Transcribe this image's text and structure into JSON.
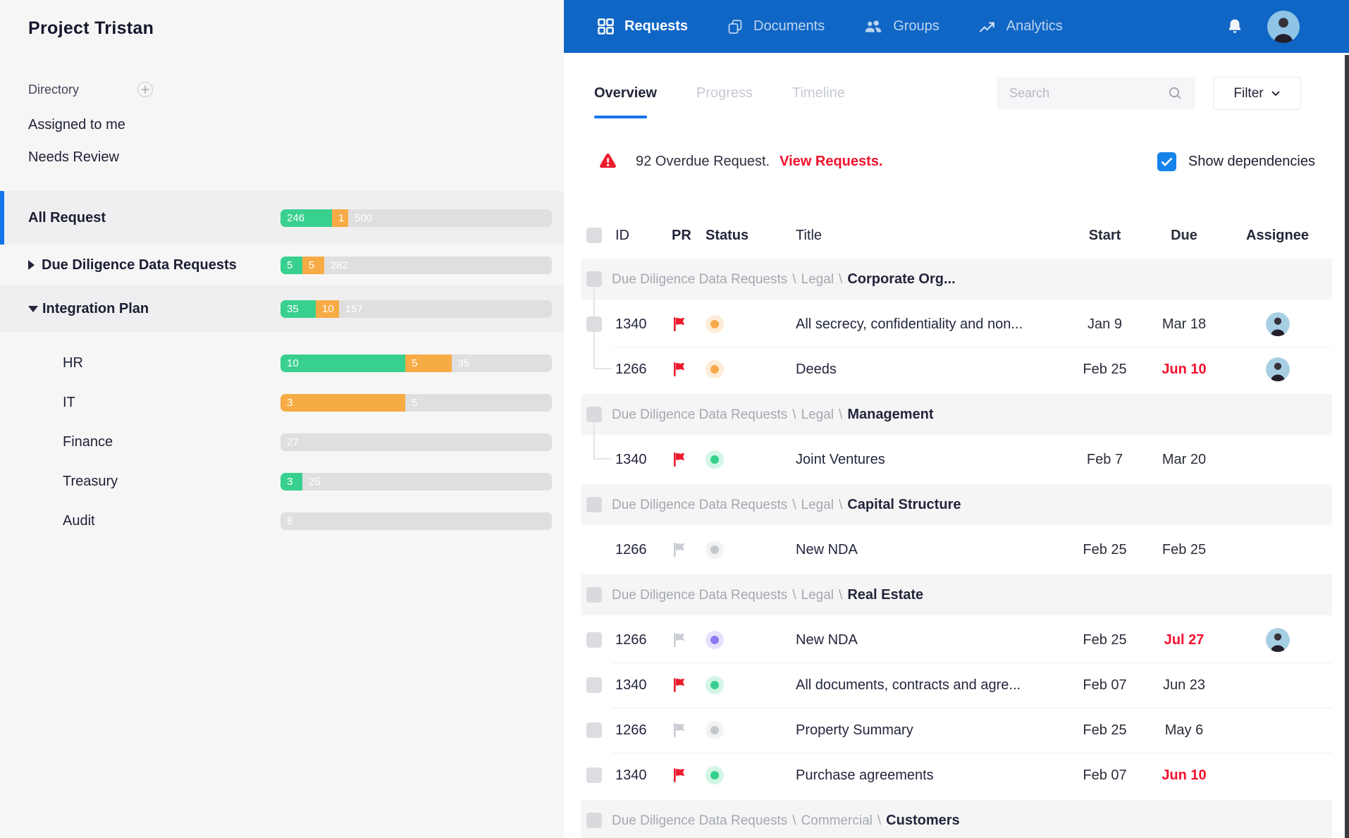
{
  "colors": {
    "header_blue": "#0F66C5",
    "accent_blue": "#1474EC",
    "checkbox_blue": "#1583EA",
    "alert_red": "#EC1C2E",
    "overdue_red": "#F2112D",
    "bar_green": "#38D08E",
    "bar_orange": "#F7AB44",
    "bar_gray": "#DFDFE1",
    "status": {
      "orange": "#F6A94A",
      "green": "#35D08E",
      "gray": "#C4C7CC",
      "purple": "#8C7BF4"
    },
    "flag": {
      "red": "#EC1C2E",
      "gray": "#C9CDD3"
    }
  },
  "sidebar": {
    "title": "Project Tristan",
    "directory_label": "Directory",
    "shortcuts": [
      {
        "label": "Assigned to me"
      },
      {
        "label": "Needs Review"
      }
    ],
    "items": [
      {
        "label": "All Request",
        "active": true,
        "caret": "none",
        "bar": [
          {
            "color": "green",
            "value": "246",
            "pct": 19
          },
          {
            "color": "orange",
            "value": "1",
            "pct": 6
          },
          {
            "color": "gray",
            "value": "500",
            "pct": 75
          }
        ]
      },
      {
        "label": "Due Diligence Data Requests",
        "active": false,
        "caret": "right",
        "bar": [
          {
            "color": "green",
            "value": "5",
            "pct": 8
          },
          {
            "color": "orange",
            "value": "5",
            "pct": 8
          },
          {
            "color": "gray",
            "value": "282",
            "pct": 84
          }
        ]
      },
      {
        "label": "Integration Plan",
        "active": false,
        "caret": "down",
        "bar": [
          {
            "color": "green",
            "value": "35",
            "pct": 13
          },
          {
            "color": "orange",
            "value": "10",
            "pct": 8.5
          },
          {
            "color": "gray",
            "value": "157",
            "pct": 78.5
          }
        ]
      }
    ],
    "subitems": [
      {
        "label": "HR",
        "bar": [
          {
            "color": "green",
            "value": "10",
            "pct": 46
          },
          {
            "color": "orange",
            "value": "5",
            "pct": 17
          },
          {
            "color": "gray",
            "value": "35",
            "pct": 37
          }
        ]
      },
      {
        "label": "IT",
        "bar": [
          {
            "color": "orange",
            "value": "3",
            "pct": 46
          },
          {
            "color": "gray",
            "value": "5",
            "pct": 54
          }
        ]
      },
      {
        "label": "Finance",
        "bar": [
          {
            "color": "gray",
            "value": "27",
            "pct": 100
          }
        ]
      },
      {
        "label": "Treasury",
        "bar": [
          {
            "color": "green",
            "value": "3",
            "pct": 8
          },
          {
            "color": "gray",
            "value": "25",
            "pct": 92
          }
        ]
      },
      {
        "label": "Audit",
        "bar": [
          {
            "color": "gray",
            "value": "8",
            "pct": 100
          }
        ]
      }
    ]
  },
  "topnav": {
    "items": [
      {
        "label": "Requests",
        "icon": "grid-icon",
        "active": true
      },
      {
        "label": "Documents",
        "icon": "documents-icon",
        "active": false
      },
      {
        "label": "Groups",
        "icon": "groups-icon",
        "active": false
      },
      {
        "label": "Analytics",
        "icon": "analytics-icon",
        "active": false
      }
    ]
  },
  "toolbar": {
    "tabs": [
      {
        "label": "Overview",
        "active": true
      },
      {
        "label": "Progress",
        "active": false
      },
      {
        "label": "Timeline",
        "active": false
      }
    ],
    "search_placeholder": "Search",
    "filter_label": "Filter"
  },
  "alert": {
    "text": "92 Overdue Request.",
    "link_text": "View Requests.",
    "dependencies_label": "Show dependencies",
    "dependencies_checked": true
  },
  "table": {
    "columns": {
      "id": "ID",
      "pr": "PR",
      "status": "Status",
      "title": "Title",
      "start": "Start",
      "due": "Due",
      "assignee": "Assignee"
    },
    "breadcrumb_separator": "\\",
    "rows": [
      {
        "type": "group",
        "path": [
          "Due Diligence Data Requests",
          "Legal"
        ],
        "name": "Corporate Org...",
        "checkbox": true,
        "connector": "down"
      },
      {
        "type": "item",
        "id": "1340",
        "flag": "red",
        "status": "orange",
        "title": "All secrecy, confidentiality and non...",
        "start": "Jan 9",
        "due": "Mar 18",
        "due_overdue": false,
        "avatar": true,
        "checkbox": true,
        "connector": "through",
        "divider": false
      },
      {
        "type": "item",
        "id": "1266",
        "flag": "red",
        "status": "orange",
        "title": "Deeds",
        "start": "Feb 25",
        "due": "Jun 10",
        "due_overdue": true,
        "avatar": true,
        "checkbox": false,
        "connector": "elbow",
        "divider": true
      },
      {
        "type": "group",
        "path": [
          "Due Diligence Data Requests",
          "Legal"
        ],
        "name": "Management",
        "checkbox": true,
        "connector": "down"
      },
      {
        "type": "item",
        "id": "1340",
        "flag": "red",
        "status": "green",
        "title": "Joint Ventures",
        "start": "Feb 7",
        "due": "Mar 20",
        "due_overdue": false,
        "avatar": false,
        "checkbox": false,
        "connector": "elbow",
        "divider": false
      },
      {
        "type": "group",
        "path": [
          "Due Diligence Data Requests",
          "Legal"
        ],
        "name": "Capital Structure",
        "checkbox": true,
        "connector": "none"
      },
      {
        "type": "item",
        "id": "1266",
        "flag": "gray",
        "status": "gray",
        "title": "New NDA",
        "start": "Feb 25",
        "due": "Feb 25",
        "due_overdue": false,
        "avatar": false,
        "checkbox": false,
        "connector": "none",
        "divider": false
      },
      {
        "type": "group",
        "path": [
          "Due Diligence Data Requests",
          "Legal"
        ],
        "name": "Real Estate",
        "checkbox": true,
        "connector": "none"
      },
      {
        "type": "item",
        "id": "1266",
        "flag": "gray",
        "status": "purple",
        "title": "New NDA",
        "start": "Feb 25",
        "due": "Jul 27",
        "due_overdue": true,
        "avatar": true,
        "checkbox": true,
        "connector": "none",
        "divider": false
      },
      {
        "type": "item",
        "id": "1340",
        "flag": "red",
        "status": "green",
        "title": "All documents, contracts and agre...",
        "start": "Feb 07",
        "due": "Jun 23",
        "due_overdue": false,
        "avatar": false,
        "checkbox": true,
        "connector": "none",
        "divider": true
      },
      {
        "type": "item",
        "id": "1266",
        "flag": "gray",
        "status": "gray",
        "title": "Property Summary",
        "start": "Feb 25",
        "due": "May 6",
        "due_overdue": false,
        "avatar": false,
        "checkbox": true,
        "connector": "none",
        "divider": true
      },
      {
        "type": "item",
        "id": "1340",
        "flag": "red",
        "status": "green",
        "title": "Purchase agreements",
        "start": "Feb 07",
        "due": "Jun 10",
        "due_overdue": true,
        "avatar": false,
        "checkbox": true,
        "connector": "none",
        "divider": true
      },
      {
        "type": "group",
        "path": [
          "Due Diligence Data Requests",
          "Commercial"
        ],
        "name": "Customers",
        "checkbox": true,
        "connector": "none"
      }
    ]
  }
}
